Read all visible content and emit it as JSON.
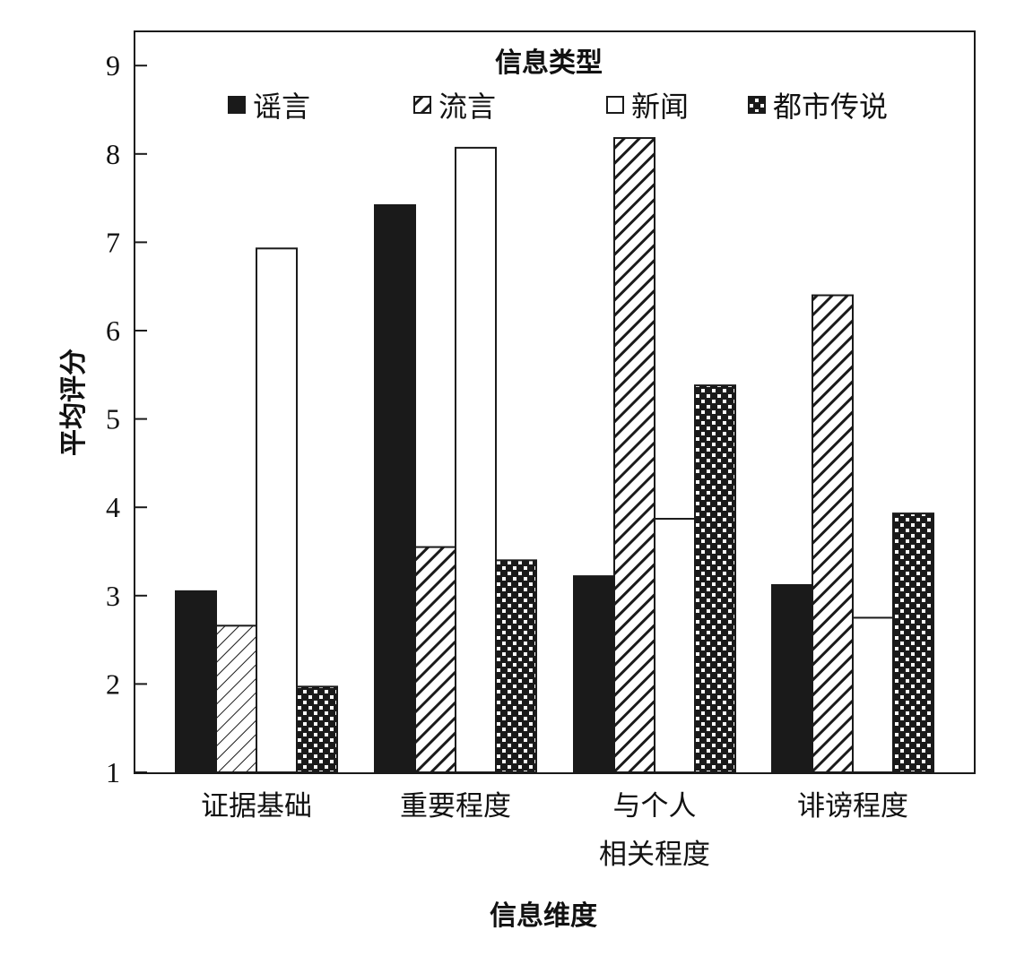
{
  "chart_data": {
    "type": "bar",
    "title": "",
    "xlabel": "信息维度",
    "ylabel": "平均评分",
    "ylim": [
      1,
      9.6
    ],
    "yticks": [
      1,
      2,
      3,
      4,
      5,
      6,
      7,
      8,
      9
    ],
    "categories": [
      [
        "证据基础"
      ],
      [
        "重要程度"
      ],
      [
        "与个人",
        "相关程度"
      ],
      [
        "诽谤程度"
      ]
    ],
    "legend": {
      "title": "信息类型",
      "placement": "top-inside"
    },
    "series": [
      {
        "name": "谣言",
        "pattern": "solid",
        "values": [
          3.05,
          7.42,
          3.22,
          3.12
        ]
      },
      {
        "name": "流言",
        "pattern": "diagonal",
        "values": [
          2.66,
          3.55,
          8.18,
          6.4
        ]
      },
      {
        "name": "新闻",
        "pattern": "white",
        "values": [
          6.93,
          8.07,
          3.87,
          2.75
        ]
      },
      {
        "name": "都市传说",
        "pattern": "checker",
        "values": [
          1.97,
          3.4,
          5.38,
          3.93
        ]
      }
    ],
    "grid": false,
    "colors": {
      "bar_fill": "#1a1a1a",
      "outline": "#1a1a1a",
      "background": "#ffffff"
    }
  }
}
